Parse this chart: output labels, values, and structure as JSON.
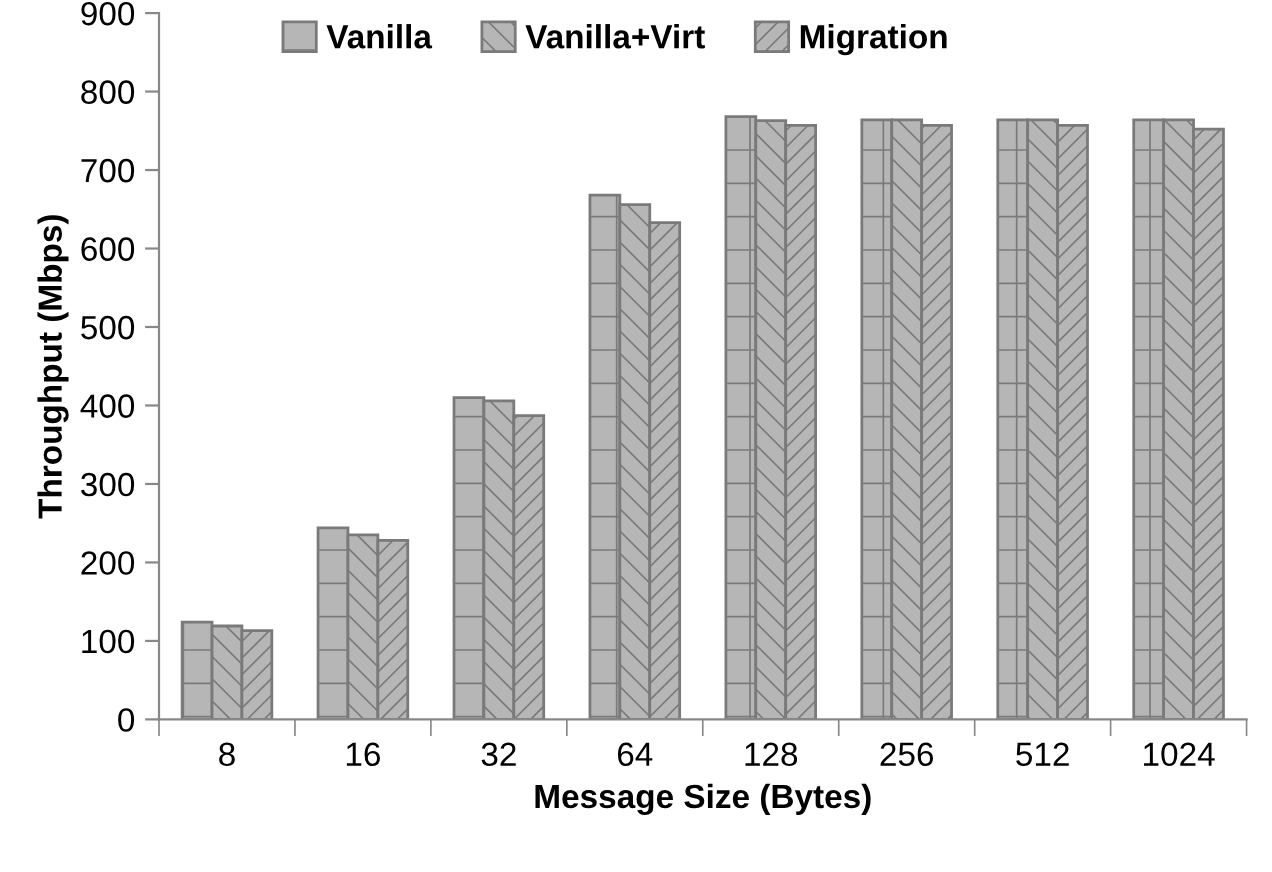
{
  "chart_data": {
    "type": "bar",
    "xlabel": "Message Size (Bytes)",
    "ylabel": "Throughput (Mbps)",
    "categories": [
      "8",
      "16",
      "32",
      "64",
      "128",
      "256",
      "512",
      "1024"
    ],
    "series": [
      {
        "name": "Vanilla",
        "color": "#7a7a7a",
        "values": [
          124,
          244,
          410,
          668,
          768,
          764,
          764,
          764
        ]
      },
      {
        "name": "Vanilla+Virt",
        "color": "#7a7a7a",
        "values": [
          119,
          235,
          406,
          656,
          763,
          764,
          764,
          764
        ]
      },
      {
        "name": "Migration",
        "color": "#7a7a7a",
        "values": [
          113,
          228,
          387,
          633,
          757,
          757,
          757,
          752
        ]
      }
    ],
    "ylim": [
      0,
      900
    ],
    "yticks": [
      0,
      100,
      200,
      300,
      400,
      500,
      600,
      700,
      800,
      900
    ],
    "grid": false,
    "legend": "top"
  }
}
